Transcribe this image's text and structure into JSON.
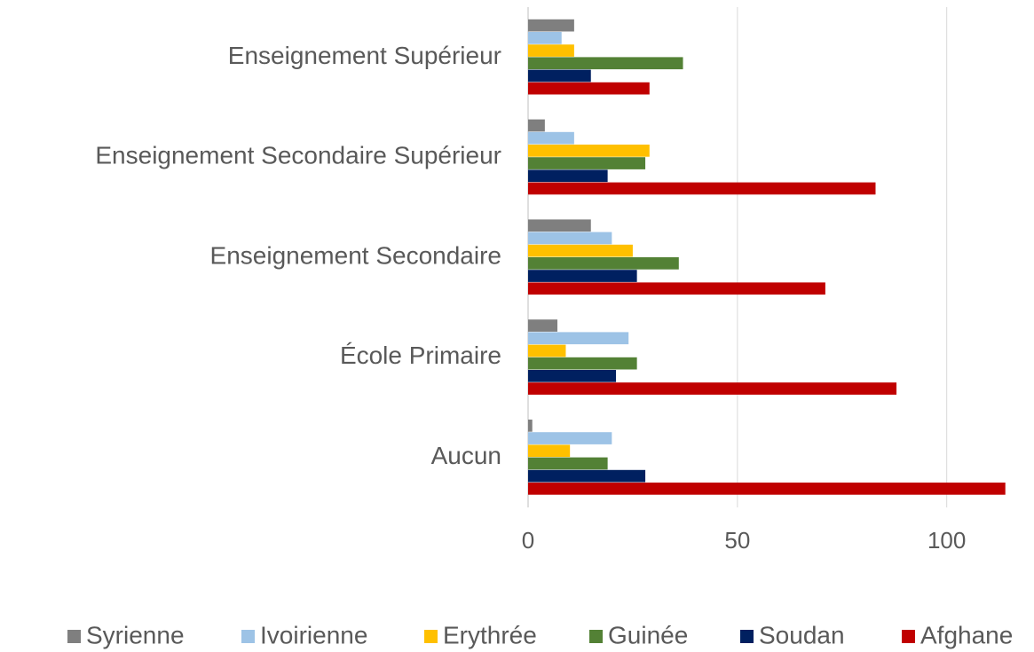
{
  "chart_data": {
    "type": "hbar",
    "categories": [
      "Enseignement Supérieur",
      "Enseignement Secondaire Supérieur",
      "Enseignement Secondaire",
      "École Primaire",
      "Aucun"
    ],
    "series": [
      {
        "name": "Syrienne",
        "color": "#7f7f7f",
        "values": [
          11,
          4,
          15,
          7,
          1
        ]
      },
      {
        "name": "Ivoirienne",
        "color": "#9dc3e6",
        "values": [
          8,
          11,
          20,
          24,
          20
        ]
      },
      {
        "name": "Erythrée",
        "color": "#ffc000",
        "values": [
          11,
          29,
          25,
          9,
          10
        ]
      },
      {
        "name": "Guinée",
        "color": "#538135",
        "values": [
          37,
          28,
          36,
          26,
          19
        ]
      },
      {
        "name": "Soudan",
        "color": "#002060",
        "values": [
          15,
          19,
          26,
          21,
          28
        ]
      },
      {
        "name": "Afghane",
        "color": "#c00000",
        "values": [
          29,
          83,
          71,
          88,
          114
        ]
      }
    ],
    "xlim": [
      0,
      120
    ],
    "xticks": [
      0,
      50,
      100
    ],
    "grid": true,
    "legend": "bottom"
  }
}
